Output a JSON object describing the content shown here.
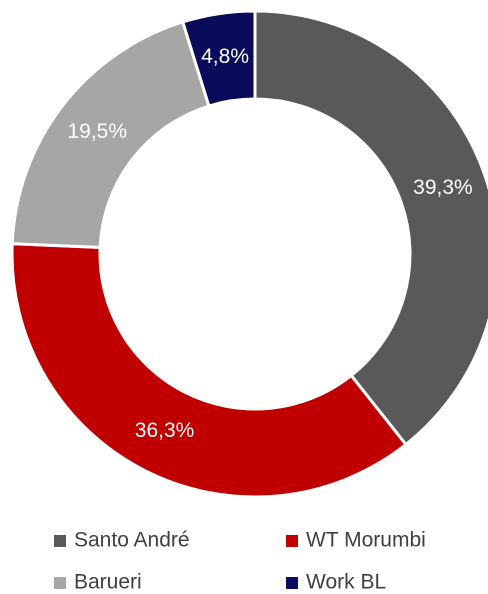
{
  "chart_data": {
    "type": "pie",
    "categories": [
      "Santo André",
      "WT Morumbi",
      "Barueri",
      "Work BL"
    ],
    "values": [
      39.3,
      36.3,
      19.5,
      4.8
    ],
    "value_labels": [
      "39,3%",
      "36,3%",
      "19,5%",
      "4,8%"
    ],
    "colors": [
      "#595959",
      "#c00000",
      "#a6a6a6",
      "#0b0b5c"
    ],
    "donut": true,
    "legend": "bottom"
  }
}
